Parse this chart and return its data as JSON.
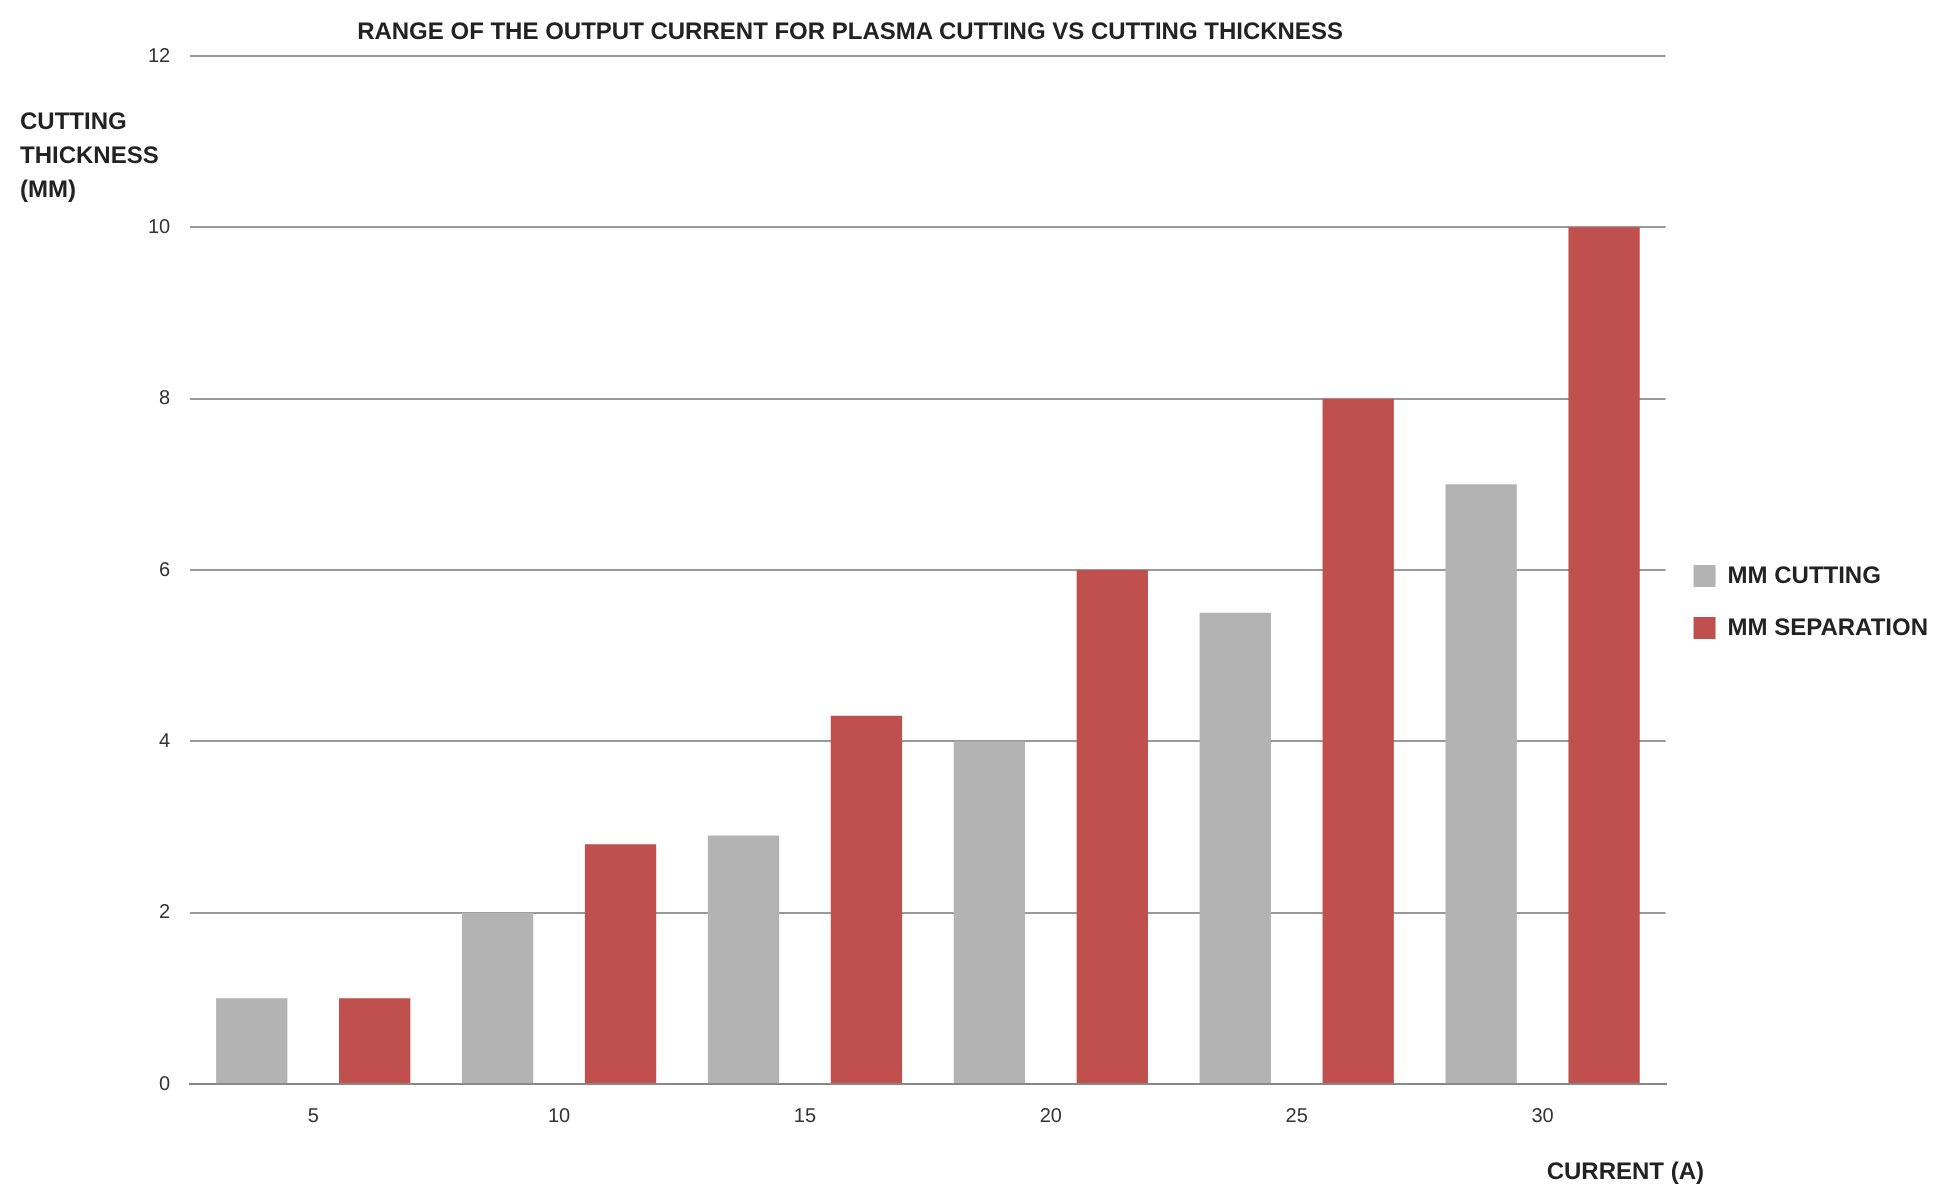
{
  "chart_data": {
    "type": "bar",
    "title": "RANGE OF THE OUTPUT CURRENT FOR PLASMA CUTTING VS CUTTING THICKNESS",
    "xlabel": "CURRENT (A)",
    "ylabel": "CUTTING THICKNESS (MM)",
    "categories": [
      "5",
      "10",
      "15",
      "20",
      "25",
      "30"
    ],
    "series": [
      {
        "name": "MM CUTTING",
        "color": "#b3b3b3",
        "values": [
          1,
          2,
          2.9,
          4,
          5.5,
          7
        ]
      },
      {
        "name": "MM SEPARATION",
        "color": "#c0504d",
        "values": [
          1,
          2.8,
          4.3,
          6,
          8,
          10
        ]
      }
    ],
    "ylim": [
      0,
      12
    ],
    "yticks": [
      0,
      2,
      4,
      6,
      8,
      10,
      12
    ],
    "grid": "y",
    "legend": "right"
  }
}
